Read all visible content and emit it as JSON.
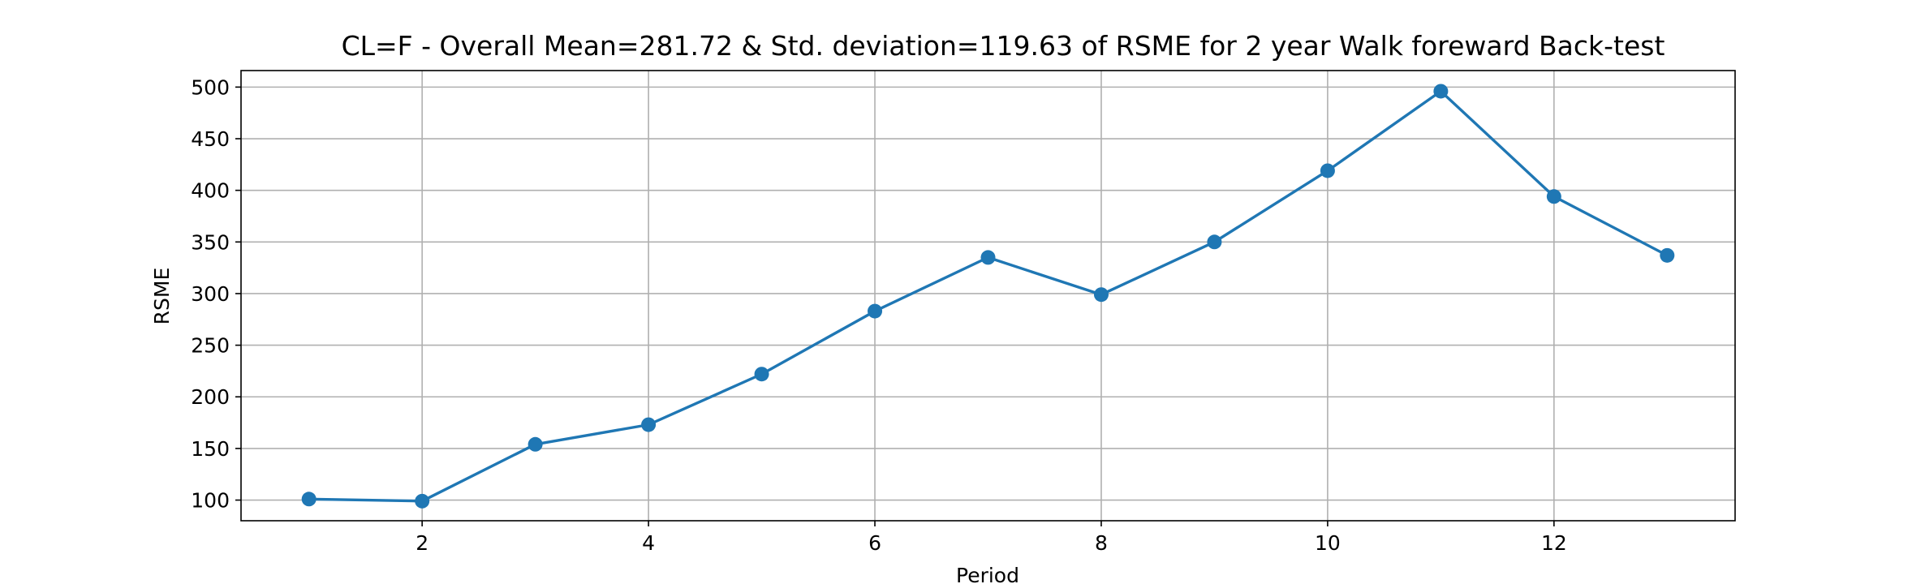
{
  "chart_data": {
    "type": "line",
    "title": "CL=F - Overall Mean=281.72 & Std. deviation=119.63 of RSME for 2 year Walk foreward Back-test",
    "xlabel": "Period",
    "ylabel": "RSME",
    "x": [
      1,
      2,
      3,
      4,
      5,
      6,
      7,
      8,
      9,
      10,
      11,
      12,
      13
    ],
    "series": [
      {
        "values": [
          101,
          99,
          154,
          173,
          222,
          283,
          335,
          299,
          350,
          419,
          496,
          394,
          337
        ]
      }
    ],
    "xlim": [
      0.4,
      13.6
    ],
    "ylim": [
      80,
      516
    ],
    "xticks": [
      2,
      4,
      6,
      8,
      10,
      12
    ],
    "xtick_labels": [
      "2",
      "4",
      "6",
      "8",
      "10",
      "12"
    ],
    "yticks": [
      100,
      150,
      200,
      250,
      300,
      350,
      400,
      450,
      500
    ],
    "ytick_labels": [
      "100",
      "150",
      "200",
      "250",
      "300",
      "350",
      "400",
      "450",
      "500"
    ],
    "grid": true,
    "marker": "circle",
    "line_color": "#1f77b4",
    "grid_color": "#b0b0b0"
  }
}
